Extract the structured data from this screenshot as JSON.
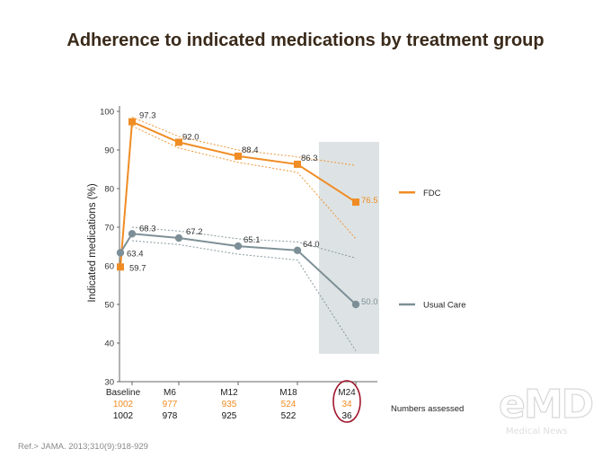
{
  "title": "Adherence to indicated medications by treatment group",
  "reference": "Ref.> JAMA. 2013;310(9):918-929",
  "watermark": {
    "logo": "eMD",
    "subtitle": "Medical News"
  },
  "colors": {
    "fdc": "#f08c24",
    "usual_care": "#7d8f96",
    "highlight_band": "#dde3e4",
    "circle": "#a0152b",
    "axis": "#666666"
  },
  "chart_data": {
    "type": "line",
    "title": "Adherence to indicated medications by treatment group",
    "xlabel": "",
    "ylabel": "Indicated medications (%)",
    "categories": [
      "Baseline",
      "M6",
      "M12",
      "M18",
      "M24"
    ],
    "yticks": [
      30,
      40,
      50,
      60,
      70,
      80,
      90,
      100
    ],
    "ylim": [
      30,
      100
    ],
    "grid": false,
    "legend_position": "right",
    "highlighted_category": "M24",
    "series": [
      {
        "name": "FDC",
        "color": "#f08c24",
        "marker": "square",
        "points": [
          {
            "x": "Baseline",
            "y": 59.7,
            "label": "59.7"
          },
          {
            "x": "Baseline",
            "y": 97.3,
            "label": "97.3"
          },
          {
            "x": "M6",
            "y": 92.0,
            "label": "92.0"
          },
          {
            "x": "M12",
            "y": 88.4,
            "label": "88.4"
          },
          {
            "x": "M18",
            "y": 86.3,
            "label": "86.3"
          },
          {
            "x": "M24",
            "y": 76.5,
            "label": "76.5"
          }
        ],
        "ci_upper": [
          {
            "x": "Baseline",
            "y": 98.5
          },
          {
            "x": "M6",
            "y": 93.5
          },
          {
            "x": "M12",
            "y": 90.0
          },
          {
            "x": "M18",
            "y": 88.2
          },
          {
            "x": "M24",
            "y": 86.0
          }
        ],
        "ci_lower": [
          {
            "x": "Baseline",
            "y": 96.2
          },
          {
            "x": "M6",
            "y": 90.5
          },
          {
            "x": "M12",
            "y": 86.8
          },
          {
            "x": "M18",
            "y": 84.2
          },
          {
            "x": "M24",
            "y": 67.0
          }
        ]
      },
      {
        "name": "Usual Care",
        "color": "#7d8f96",
        "marker": "circle",
        "points": [
          {
            "x": "Baseline",
            "y": 63.4,
            "label": "63.4"
          },
          {
            "x": "Baseline",
            "y": 68.3,
            "label": "68.3"
          },
          {
            "x": "M6",
            "y": 67.2,
            "label": "67.2"
          },
          {
            "x": "M12",
            "y": 65.1,
            "label": "65.1"
          },
          {
            "x": "M18",
            "y": 64.0,
            "label": "64.0"
          },
          {
            "x": "M24",
            "y": 50.0,
            "label": "50.0"
          }
        ],
        "ci_upper": [
          {
            "x": "Baseline",
            "y": 70.0
          },
          {
            "x": "M6",
            "y": 69.0
          },
          {
            "x": "M12",
            "y": 67.0
          },
          {
            "x": "M18",
            "y": 66.2
          },
          {
            "x": "M24",
            "y": 62.0
          }
        ],
        "ci_lower": [
          {
            "x": "Baseline",
            "y": 66.5
          },
          {
            "x": "M6",
            "y": 65.5
          },
          {
            "x": "M12",
            "y": 63.0
          },
          {
            "x": "M18",
            "y": 61.5
          },
          {
            "x": "M24",
            "y": 38.0
          }
        ]
      }
    ],
    "numbers_assessed": {
      "label": "Numbers assessed",
      "fdc": [
        "1002",
        "977",
        "935",
        "524",
        "34"
      ],
      "usual_care": [
        "1002",
        "978",
        "925",
        "522",
        "36"
      ]
    }
  }
}
